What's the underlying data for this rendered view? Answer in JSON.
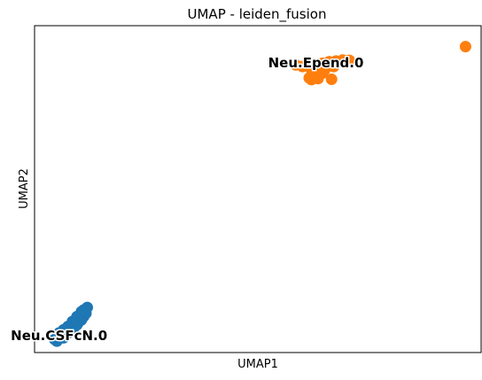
{
  "chart_data": {
    "type": "scatter",
    "title": "UMAP - leiden_fusion",
    "xlabel": "UMAP1",
    "ylabel": "UMAP2",
    "xlim": [
      0,
      100
    ],
    "ylim": [
      0,
      100
    ],
    "ticks": "none",
    "grid": false,
    "series": [
      {
        "name": "Neu.CSFcN.0",
        "color": "#1f77b4",
        "points": [
          [
            4.5,
            4.0
          ],
          [
            5.0,
            3.5
          ],
          [
            5.5,
            4.5
          ],
          [
            6.0,
            5.0
          ],
          [
            6.5,
            4.5
          ],
          [
            7.0,
            5.5
          ],
          [
            7.5,
            6.0
          ],
          [
            8.0,
            7.0
          ],
          [
            8.5,
            6.5
          ],
          [
            9.0,
            8.0
          ],
          [
            9.5,
            8.5
          ],
          [
            10.0,
            9.5
          ],
          [
            10.5,
            10.0
          ],
          [
            11.0,
            11.0
          ],
          [
            11.5,
            12.0
          ],
          [
            10.5,
            12.5
          ],
          [
            9.5,
            11.0
          ],
          [
            8.5,
            9.5
          ],
          [
            7.5,
            8.0
          ],
          [
            6.5,
            7.0
          ],
          [
            5.5,
            6.0
          ],
          [
            11.0,
            13.0
          ],
          [
            11.8,
            13.8
          ]
        ]
      },
      {
        "name": "Neu.Epend.0",
        "color": "#ff7f0e",
        "points": [
          [
            58.5,
            88.0
          ],
          [
            60.0,
            87.5
          ],
          [
            62.0,
            86.5
          ],
          [
            63.0,
            87.8
          ],
          [
            64.5,
            88.5
          ],
          [
            66.0,
            89.0
          ],
          [
            67.5,
            89.2
          ],
          [
            69.0,
            89.5
          ],
          [
            70.5,
            89.4
          ],
          [
            67.0,
            87.5
          ],
          [
            65.0,
            86.5
          ],
          [
            62.5,
            84.5
          ],
          [
            63.5,
            83.8
          ],
          [
            61.5,
            84.0
          ],
          [
            64.5,
            85.5
          ],
          [
            66.5,
            83.6
          ],
          [
            62.0,
            83.5
          ],
          [
            96.5,
            93.6
          ]
        ]
      }
    ],
    "annotations": [
      {
        "text": "Neu.Epend.0",
        "x": 63.0,
        "y": 88.5
      },
      {
        "text": "Neu.CSFcN.0",
        "x": 5.5,
        "y": 5.0
      }
    ]
  }
}
